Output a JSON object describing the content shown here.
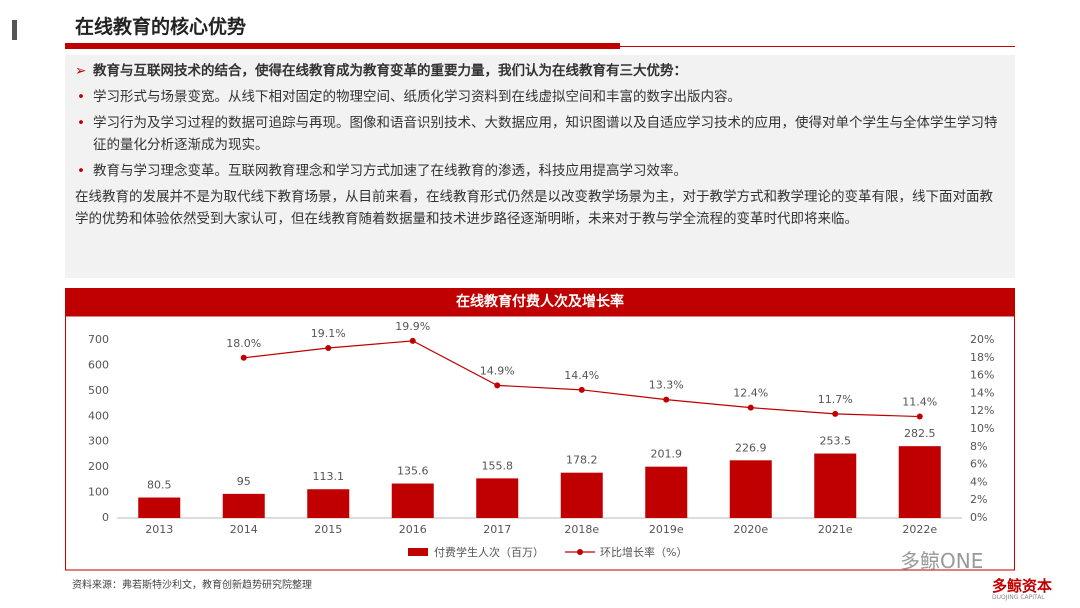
{
  "header": {
    "title": "在线教育的核心优势"
  },
  "intro": "教育与互联网技术的结合，使得在线教育成为教育变革的重要力量，我们认为在线教育有三大优势：",
  "bullets": [
    "学习形式与场景变宽。从线下相对固定的物理空间、纸质化学习资料到在线虚拟空间和丰富的数字出版内容。",
    "学习行为及学习过程的数据可追踪与再现。图像和语音识别技术、大数据应用，知识图谱以及自适应学习技术的应用，使得对单个学生与全体学生学习特征的量化分析逐渐成为现实。",
    "教育与学习理念变革。互联网教育理念和学习方式加速了在线教育的渗透，科技应用提高学习效率。"
  ],
  "paragraph": "在线教育的发展并不是为取代线下教育场景，从目前来看，在线教育形式仍然是以改变教学场景为主，对于教学方式和教学理论的变革有限，线下面对面教学的优势和体验依然受到大家认可，但在线教育随着数据量和技术进步路径逐渐明晰，未来对于教与学全流程的变革时代即将来临。",
  "chart_data": {
    "type": "bar",
    "title": "在线教育付费人次及增长率",
    "categories": [
      "2013",
      "2014",
      "2015",
      "2016",
      "2017",
      "2018e",
      "2019e",
      "2020e",
      "2021e",
      "2022e"
    ],
    "series": [
      {
        "name": "付费学生人次（百万）",
        "color": "#c00000",
        "values": [
          80.5,
          95,
          113.1,
          135.6,
          155.8,
          178.2,
          201.9,
          226.9,
          253.5,
          282.5
        ]
      },
      {
        "name": "环比增长率（%）",
        "type": "line",
        "axis": "y2",
        "color": "#c00000",
        "values": [
          null,
          18.0,
          19.1,
          19.9,
          14.9,
          14.4,
          13.3,
          12.4,
          11.7,
          11.4
        ],
        "value_labels": [
          null,
          "18.0%",
          "19.1%",
          "19.9%",
          "14.9%",
          "14.4%",
          "13.3%",
          "12.4%",
          "11.7%",
          "11.4%"
        ]
      }
    ],
    "ylim": [
      0,
      700
    ],
    "yticks": [
      0,
      100,
      200,
      300,
      400,
      500,
      600,
      700
    ],
    "y2lim": [
      0,
      20
    ],
    "y2ticks": [
      {
        "value": 0,
        "label": "0%"
      },
      {
        "value": 2,
        "label": "2%"
      },
      {
        "value": 4,
        "label": "4%"
      },
      {
        "value": 6,
        "label": "6%"
      },
      {
        "value": 8,
        "label": "8%"
      },
      {
        "value": 10,
        "label": "10%"
      },
      {
        "value": 12,
        "label": "12%"
      },
      {
        "value": 14,
        "label": "14%"
      },
      {
        "value": 16,
        "label": "16%"
      },
      {
        "value": 18,
        "label": "18%"
      },
      {
        "value": 20,
        "label": "20%"
      }
    ]
  },
  "source": "资料来源：弗若斯特沙利文，教育创新趋势研究院整理",
  "watermark": "多鲸ONE",
  "logo": "多鲸资本",
  "logo_sub": "DUOJING CAPITAL"
}
